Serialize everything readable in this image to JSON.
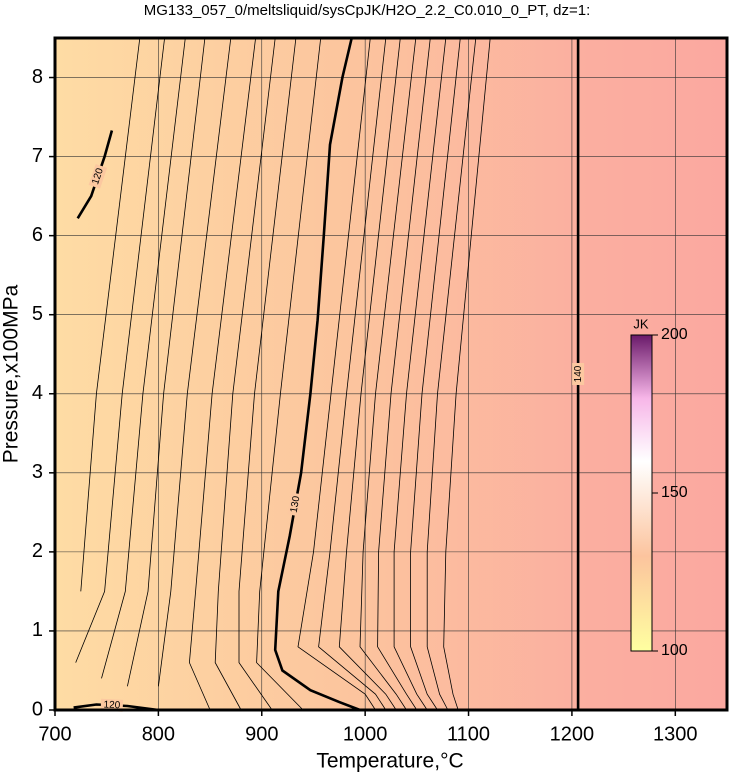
{
  "chart_data": {
    "type": "contour",
    "title": "MG133_057_0/meltsliquid/sysCpJK/H2O_2.2_C0.010_0_PT, dz=1:",
    "x_label": "Temperature,°C",
    "y_label": "Pressure,x100MPa",
    "xlim": [
      700,
      1350
    ],
    "ylim": [
      0,
      8.5
    ],
    "xticks": [
      700,
      800,
      900,
      1000,
      1100,
      1200,
      1300
    ],
    "yticks": [
      0,
      1,
      2,
      3,
      4,
      5,
      6,
      7,
      8
    ],
    "grid": true,
    "colorbar": {
      "label": "JK",
      "lim": [
        100,
        200
      ],
      "ticks": [
        100,
        150,
        200
      ]
    },
    "contours": [
      {
        "level": 120,
        "x": [
          722,
          735,
          748,
          755
        ],
        "y": [
          6.22,
          6.5,
          7.0,
          7.33
        ]
      },
      {
        "level": 120,
        "x": [
          718,
          740,
          770,
          800
        ],
        "y": [
          0.03,
          0.07,
          0.05,
          0.0
        ]
      },
      {
        "level": 130,
        "x": [
          987,
          978,
          966,
          960,
          954,
          947,
          938,
          927,
          916,
          913,
          920,
          947,
          975,
          995
        ],
        "y": [
          8.5,
          8.0,
          7.15,
          6.0,
          4.93,
          4.0,
          3.0,
          2.2,
          1.5,
          0.76,
          0.5,
          0.25,
          0.1,
          0.0
        ]
      },
      {
        "level": 140,
        "x": [
          1206,
          1206
        ],
        "y": [
          0.0,
          8.5
        ]
      },
      {
        "level": 121,
        "x": [
          782,
          740,
          725
        ],
        "y": [
          8.5,
          4.0,
          1.5
        ]
      },
      {
        "level": 122,
        "x": [
          806,
          765,
          748,
          720
        ],
        "y": [
          8.5,
          4.0,
          1.5,
          0.6
        ]
      },
      {
        "level": 123,
        "x": [
          826,
          785,
          768,
          745
        ],
        "y": [
          8.5,
          4.0,
          1.5,
          0.4
        ]
      },
      {
        "level": 124,
        "x": [
          845,
          805,
          790,
          770
        ],
        "y": [
          8.5,
          4.0,
          1.5,
          0.3
        ]
      },
      {
        "level": 125,
        "x": [
          870,
          828,
          812,
          800
        ],
        "y": [
          8.5,
          4.0,
          1.5,
          0.3
        ]
      },
      {
        "level": 126,
        "x": [
          894,
          852,
          836,
          830,
          850
        ],
        "y": [
          8.5,
          4.0,
          1.5,
          0.6,
          0.0
        ]
      },
      {
        "level": 127,
        "x": [
          913,
          872,
          858,
          855,
          880
        ],
        "y": [
          8.5,
          4.0,
          1.5,
          0.6,
          0.0
        ]
      },
      {
        "level": 128,
        "x": [
          933,
          893,
          878,
          878,
          910
        ],
        "y": [
          8.5,
          4.0,
          1.5,
          0.6,
          0.0
        ]
      },
      {
        "level": 129,
        "x": [
          957,
          918,
          898,
          895,
          940
        ],
        "y": [
          8.5,
          4.0,
          1.5,
          0.6,
          0.0
        ]
      },
      {
        "level": 131,
        "x": [
          1005,
          967,
          950,
          935,
          1000,
          1010
        ],
        "y": [
          8.5,
          4.0,
          2.0,
          0.8,
          0.2,
          0.0
        ]
      },
      {
        "level": 132,
        "x": [
          1020,
          982,
          966,
          955,
          1010,
          1020
        ],
        "y": [
          8.5,
          4.0,
          2.0,
          0.8,
          0.2,
          0.0
        ]
      },
      {
        "level": 133,
        "x": [
          1034,
          996,
          982,
          975,
          1020,
          1030
        ],
        "y": [
          8.5,
          4.0,
          2.0,
          0.8,
          0.2,
          0.0
        ]
      },
      {
        "level": 134,
        "x": [
          1049,
          1010,
          998,
          995,
          1030,
          1040
        ],
        "y": [
          8.5,
          4.0,
          2.0,
          0.8,
          0.2,
          0.0
        ]
      },
      {
        "level": 135,
        "x": [
          1063,
          1025,
          1013,
          1012,
          1040,
          1050
        ],
        "y": [
          8.5,
          4.0,
          2.0,
          0.8,
          0.2,
          0.0
        ]
      },
      {
        "level": 136,
        "x": [
          1078,
          1040,
          1028,
          1028,
          1050,
          1060
        ],
        "y": [
          8.5,
          4.0,
          2.0,
          0.8,
          0.2,
          0.0
        ]
      },
      {
        "level": 137,
        "x": [
          1092,
          1055,
          1044,
          1044,
          1060,
          1070
        ],
        "y": [
          8.5,
          4.0,
          2.0,
          0.8,
          0.2,
          0.0
        ]
      },
      {
        "level": 138,
        "x": [
          1107,
          1070,
          1060,
          1060,
          1072,
          1080
        ],
        "y": [
          8.5,
          4.0,
          2.0,
          0.8,
          0.2,
          0.0
        ]
      },
      {
        "level": 139,
        "x": [
          1121,
          1088,
          1078,
          1076,
          1085,
          1090
        ],
        "y": [
          8.5,
          4.0,
          2.0,
          0.8,
          0.2,
          0.0
        ]
      }
    ]
  }
}
